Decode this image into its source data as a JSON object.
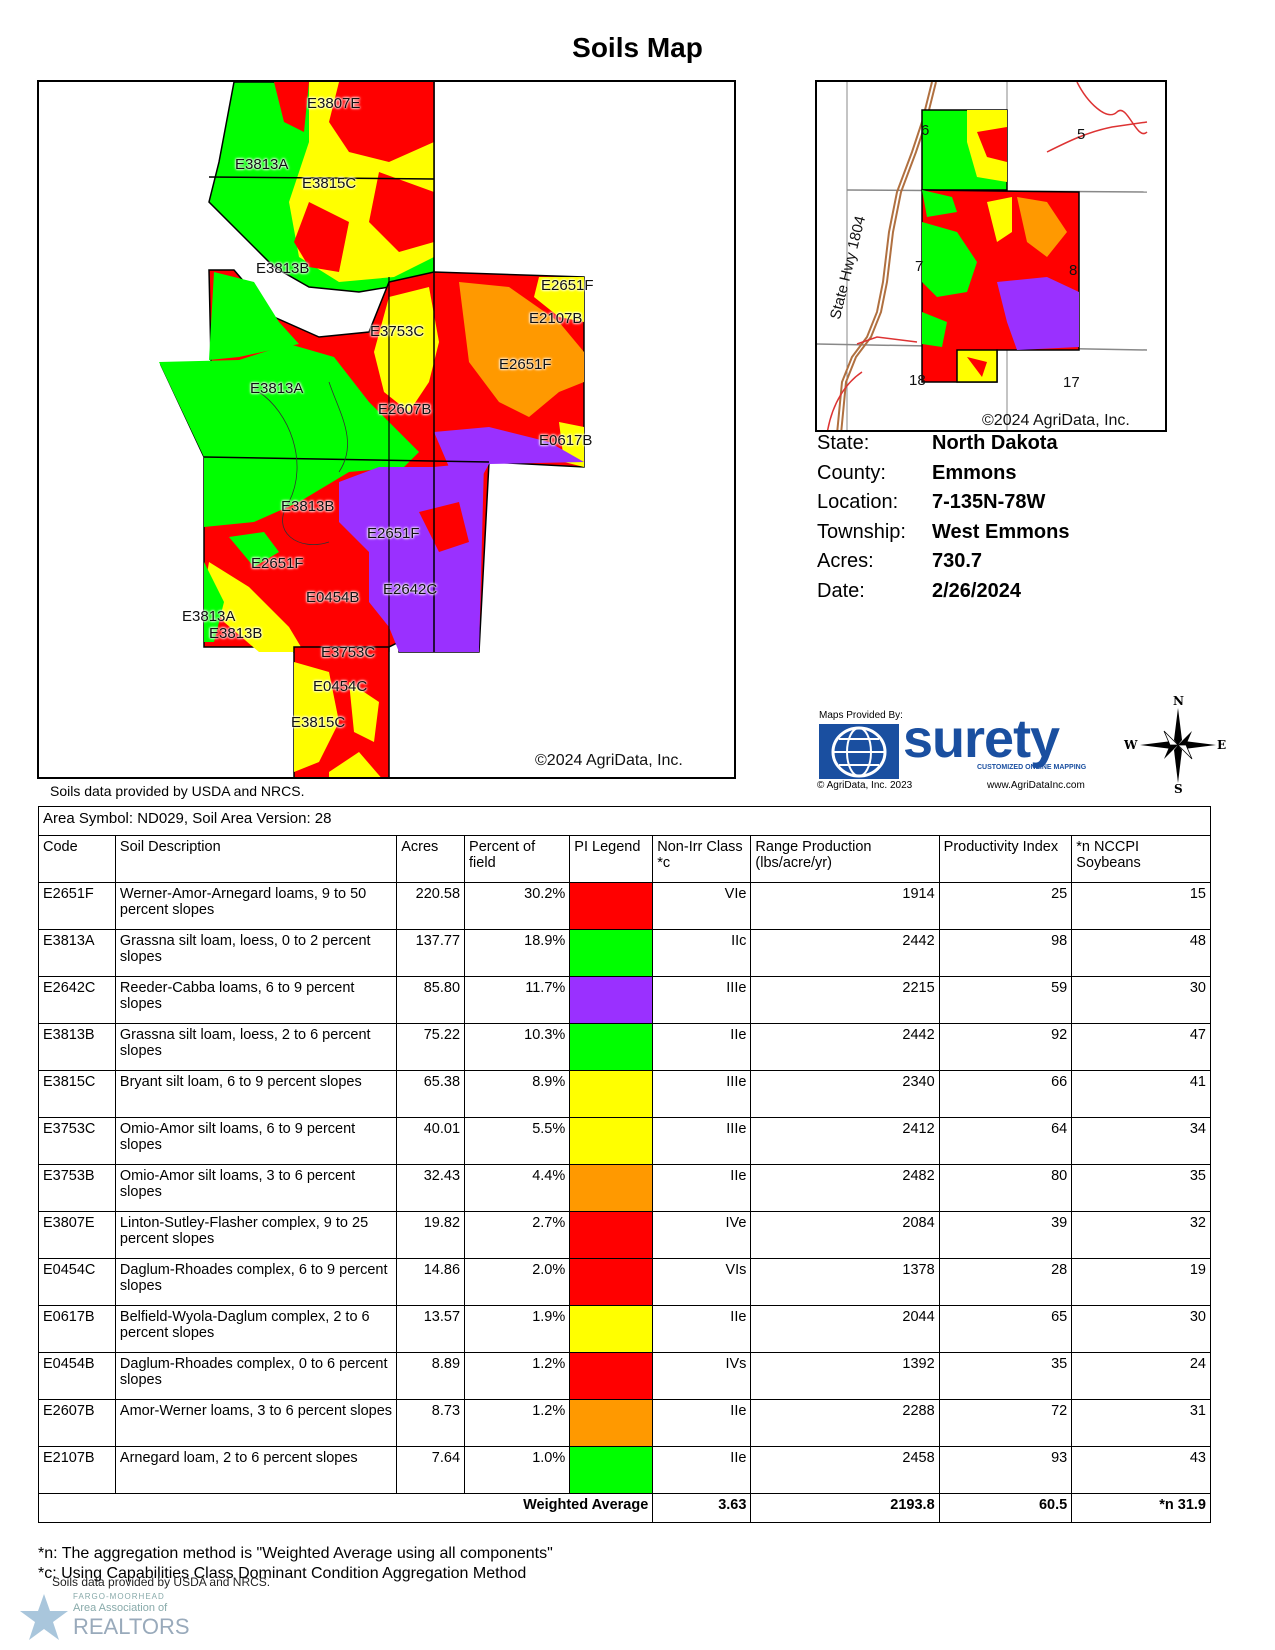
{
  "page": {
    "title": "Soils Map"
  },
  "main_map": {
    "labels": [
      "E3807E",
      "E3813A",
      "E3815C",
      "E3813B",
      "E2651F",
      "E2107B",
      "E3753C",
      "E2651F",
      "E3813A",
      "E2607B",
      "E0617B",
      "E3813B",
      "E2651F",
      "E2651F",
      "E0454B",
      "E2642C",
      "E3813A",
      "E3813B",
      "E3753C",
      "E0454C",
      "E3815C"
    ],
    "copyright": "©2024 AgriData, Inc."
  },
  "inset_map": {
    "road_label": "State Hwy 1804",
    "section_numbers": [
      "6",
      "5",
      "7",
      "8",
      "18",
      "17"
    ],
    "copyright": "©2024 AgriData, Inc."
  },
  "info": {
    "rows": [
      {
        "key": "State:",
        "value": "North Dakota"
      },
      {
        "key": "County:",
        "value": "Emmons"
      },
      {
        "key": "Location:",
        "value": "7-135N-78W"
      },
      {
        "key": "Township:",
        "value": "West Emmons"
      },
      {
        "key": "Acres:",
        "value": "730.7"
      },
      {
        "key": "Date:",
        "value": "2/26/2024"
      }
    ]
  },
  "source_note": "Soils data provided by USDA and NRCS.",
  "surety": {
    "provided_by": "Maps Provided By:",
    "brand": "surety",
    "tagline": "CUSTOMIZED ONLINE MAPPING",
    "copyright": "© AgriData, Inc. 2023",
    "url": "www.AgriDataInc.com"
  },
  "compass": {
    "n": "N",
    "s": "S",
    "e": "E",
    "w": "W"
  },
  "table": {
    "area_symbol": "Area Symbol: ND029, Soil Area Version: 28",
    "headers": [
      "Code",
      "Soil Description",
      "Acres",
      "Percent of field",
      "PI Legend",
      "Non-Irr Class *c",
      "Range Production (lbs/acre/yr)",
      "Productivity Index",
      "*n NCCPI Soybeans"
    ],
    "rows": [
      {
        "code": "E2651F",
        "desc": "Werner-Amor-Arnegard loams, 9 to 50 percent slopes",
        "acres": "220.58",
        "pct": "30.2%",
        "color": "#ff0000",
        "cls": "VIe",
        "range": "1914",
        "pi": "25",
        "nccpi": "15"
      },
      {
        "code": "E3813A",
        "desc": "Grassna silt loam, loess, 0 to 2 percent slopes",
        "acres": "137.77",
        "pct": "18.9%",
        "color": "#00ff00",
        "cls": "IIc",
        "range": "2442",
        "pi": "98",
        "nccpi": "48"
      },
      {
        "code": "E2642C",
        "desc": "Reeder-Cabba loams, 6 to 9 percent slopes",
        "acres": "85.80",
        "pct": "11.7%",
        "color": "#9a30ff",
        "cls": "IIIe",
        "range": "2215",
        "pi": "59",
        "nccpi": "30"
      },
      {
        "code": "E3813B",
        "desc": "Grassna silt loam, loess, 2 to 6 percent slopes",
        "acres": "75.22",
        "pct": "10.3%",
        "color": "#00ff00",
        "cls": "IIe",
        "range": "2442",
        "pi": "92",
        "nccpi": "47"
      },
      {
        "code": "E3815C",
        "desc": "Bryant silt loam, 6 to 9 percent slopes",
        "acres": "65.38",
        "pct": "8.9%",
        "color": "#ffff00",
        "cls": "IIIe",
        "range": "2340",
        "pi": "66",
        "nccpi": "41"
      },
      {
        "code": "E3753C",
        "desc": "Omio-Amor silt loams, 6 to 9 percent slopes",
        "acres": "40.01",
        "pct": "5.5%",
        "color": "#ffff00",
        "cls": "IIIe",
        "range": "2412",
        "pi": "64",
        "nccpi": "34"
      },
      {
        "code": "E3753B",
        "desc": "Omio-Amor silt loams, 3 to 6 percent slopes",
        "acres": "32.43",
        "pct": "4.4%",
        "color": "#ff9900",
        "cls": "IIe",
        "range": "2482",
        "pi": "80",
        "nccpi": "35"
      },
      {
        "code": "E3807E",
        "desc": "Linton-Sutley-Flasher complex, 9 to 25 percent slopes",
        "acres": "19.82",
        "pct": "2.7%",
        "color": "#ff0000",
        "cls": "IVe",
        "range": "2084",
        "pi": "39",
        "nccpi": "32"
      },
      {
        "code": "E0454C",
        "desc": "Daglum-Rhoades complex, 6 to 9 percent slopes",
        "acres": "14.86",
        "pct": "2.0%",
        "color": "#ff0000",
        "cls": "VIs",
        "range": "1378",
        "pi": "28",
        "nccpi": "19"
      },
      {
        "code": "E0617B",
        "desc": "Belfield-Wyola-Daglum complex, 2 to 6 percent slopes",
        "acres": "13.57",
        "pct": "1.9%",
        "color": "#ffff00",
        "cls": "IIe",
        "range": "2044",
        "pi": "65",
        "nccpi": "30"
      },
      {
        "code": "E0454B",
        "desc": "Daglum-Rhoades complex, 0 to 6 percent slopes",
        "acres": "8.89",
        "pct": "1.2%",
        "color": "#ff0000",
        "cls": "IVs",
        "range": "1392",
        "pi": "35",
        "nccpi": "24"
      },
      {
        "code": "E2607B",
        "desc": "Amor-Werner loams, 3 to 6 percent slopes",
        "acres": "8.73",
        "pct": "1.2%",
        "color": "#ff9900",
        "cls": "IIe",
        "range": "2288",
        "pi": "72",
        "nccpi": "31"
      },
      {
        "code": "E2107B",
        "desc": "Arnegard loam, 2 to 6 percent slopes",
        "acres": "7.64",
        "pct": "1.0%",
        "color": "#00ff00",
        "cls": "IIe",
        "range": "2458",
        "pi": "93",
        "nccpi": "43"
      }
    ],
    "weighted": {
      "label": "Weighted Average",
      "cls": "3.63",
      "range": "2193.8",
      "pi": "60.5",
      "nccpi": "*n 31.9"
    }
  },
  "footnotes": {
    "n": "*n: The aggregation method is \"Weighted Average using all components\"",
    "c": "*c: Using Capabilities Class Dominant Condition Aggregation Method",
    "source": "Soils data provided by USDA and NRCS."
  },
  "realtor_logo": {
    "line1": "FARGO-MOORHEAD",
    "line2": "Area Association of",
    "line3": "REALTORS"
  }
}
